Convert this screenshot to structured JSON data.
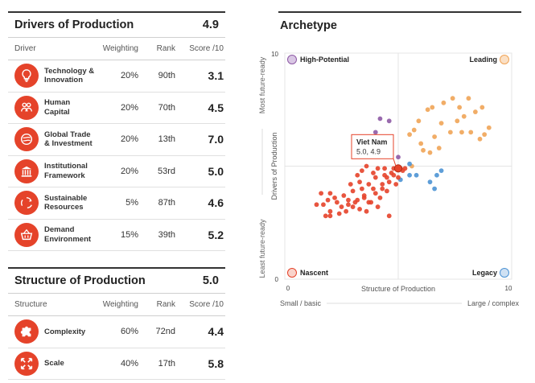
{
  "drivers": {
    "title": "Drivers of Production",
    "score": "4.9",
    "headers": {
      "name": "Driver",
      "weighting": "Weighting",
      "rank": "Rank",
      "score": "Score /10"
    },
    "rows": [
      {
        "icon": "lightbulb-icon",
        "name": [
          "Technology &",
          "Innovation"
        ],
        "weighting": "20%",
        "rank": "90th",
        "score": "3.1"
      },
      {
        "icon": "people-icon",
        "name": [
          "Human",
          "Capital"
        ],
        "weighting": "20%",
        "rank": "70th",
        "score": "4.5"
      },
      {
        "icon": "globe-icon",
        "name": [
          "Global Trade",
          "& Investment"
        ],
        "weighting": "20%",
        "rank": "13th",
        "score": "7.0"
      },
      {
        "icon": "institution-icon",
        "name": [
          "Institutional",
          "Framework"
        ],
        "weighting": "20%",
        "rank": "53rd",
        "score": "5.0"
      },
      {
        "icon": "recycle-icon",
        "name": [
          "Sustainable",
          "Resources"
        ],
        "weighting": "5%",
        "rank": "87th",
        "score": "4.6"
      },
      {
        "icon": "basket-icon",
        "name": [
          "Demand",
          "Environment"
        ],
        "weighting": "15%",
        "rank": "39th",
        "score": "5.2"
      }
    ]
  },
  "structure": {
    "title": "Structure of Production",
    "score": "5.0",
    "headers": {
      "name": "Structure",
      "weighting": "Weighting",
      "rank": "Rank",
      "score": "Score /10"
    },
    "rows": [
      {
        "icon": "puzzle-icon",
        "name": [
          "Complexity"
        ],
        "weighting": "60%",
        "rank": "72nd",
        "score": "4.4"
      },
      {
        "icon": "expand-icon",
        "name": [
          "Scale"
        ],
        "weighting": "40%",
        "rank": "17th",
        "score": "5.8"
      }
    ]
  },
  "archetype": {
    "title": "Archetype"
  },
  "colors": {
    "accent": "#e5432a",
    "leading": "#f0a457",
    "high_potential": "#8e5aa5",
    "legacy": "#4c93d4",
    "nascent": "#e5432a"
  },
  "chart_data": {
    "type": "scatter",
    "xlabel": "Structure of Production",
    "ylabel": "Drivers of Production",
    "x_axis_left": "Small / basic",
    "x_axis_right": "Large / complex",
    "y_axis_top": "Most future-ready",
    "y_axis_bottom": "Least future-ready",
    "xlim": [
      0,
      10
    ],
    "ylim": [
      0,
      10
    ],
    "xticks": [
      "0",
      "10"
    ],
    "yticks": [
      "0",
      "10"
    ],
    "threshold_x": 5.0,
    "threshold_y": 5.0,
    "quadrants": {
      "top_left": "High-Potential",
      "top_right": "Leading",
      "bottom_left": "Nascent",
      "bottom_right": "Legacy"
    },
    "highlight": {
      "name": "Viet Nam",
      "label": "5.0, 4.9",
      "x": 5.0,
      "y": 4.9
    },
    "series": [
      {
        "quadrant": "leading",
        "points": [
          [
            6.3,
            7.5
          ],
          [
            5.5,
            6.4
          ],
          [
            5.9,
            7.0
          ],
          [
            6.6,
            6.3
          ],
          [
            7.0,
            7.8
          ],
          [
            7.4,
            8.0
          ],
          [
            7.9,
            7.2
          ],
          [
            8.1,
            8.0
          ],
          [
            8.4,
            7.4
          ],
          [
            8.7,
            7.6
          ],
          [
            9.0,
            6.7
          ],
          [
            8.6,
            6.2
          ],
          [
            7.6,
            7.0
          ],
          [
            6.9,
            6.9
          ],
          [
            7.3,
            6.5
          ],
          [
            7.8,
            6.5
          ],
          [
            6.1,
            5.7
          ],
          [
            5.6,
            5.0
          ],
          [
            6.4,
            5.6
          ],
          [
            6.8,
            5.8
          ],
          [
            7.7,
            7.6
          ],
          [
            8.2,
            6.5
          ],
          [
            6.5,
            7.6
          ],
          [
            8.8,
            6.4
          ],
          [
            6.0,
            6.0
          ],
          [
            5.7,
            6.6
          ]
        ]
      },
      {
        "quadrant": "high_potential",
        "points": [
          [
            4.2,
            7.1
          ],
          [
            4.6,
            7.0
          ],
          [
            4.0,
            6.5
          ],
          [
            4.6,
            6.2
          ],
          [
            4.2,
            5.5
          ],
          [
            5.0,
            5.4
          ],
          [
            4.5,
            5.8
          ]
        ]
      },
      {
        "quadrant": "legacy",
        "points": [
          [
            5.1,
            4.4
          ],
          [
            5.5,
            4.6
          ],
          [
            5.8,
            4.6
          ],
          [
            6.4,
            4.3
          ],
          [
            6.7,
            4.6
          ],
          [
            6.9,
            4.8
          ],
          [
            5.5,
            5.1
          ],
          [
            6.6,
            4.0
          ]
        ]
      },
      {
        "quadrant": "nascent",
        "points": [
          [
            1.6,
            3.8
          ],
          [
            1.9,
            3.5
          ],
          [
            1.4,
            3.3
          ],
          [
            2.0,
            3.0
          ],
          [
            2.3,
            3.4
          ],
          [
            2.6,
            3.7
          ],
          [
            2.8,
            3.3
          ],
          [
            3.0,
            3.9
          ],
          [
            3.1,
            3.4
          ],
          [
            3.3,
            4.3
          ],
          [
            3.5,
            3.7
          ],
          [
            3.7,
            4.2
          ],
          [
            3.9,
            4.7
          ],
          [
            4.0,
            4.5
          ],
          [
            4.1,
            4.9
          ],
          [
            4.3,
            4.2
          ],
          [
            4.4,
            4.6
          ],
          [
            4.6,
            4.3
          ],
          [
            4.7,
            4.7
          ],
          [
            4.8,
            4.9
          ],
          [
            5.0,
            4.5
          ],
          [
            5.2,
            4.8
          ],
          [
            3.4,
            4.8
          ],
          [
            3.6,
            5.0
          ],
          [
            3.2,
            4.6
          ],
          [
            2.9,
            4.2
          ],
          [
            2.2,
            3.6
          ],
          [
            1.8,
            2.8
          ],
          [
            2.0,
            2.8
          ],
          [
            2.4,
            2.9
          ],
          [
            2.7,
            3.0
          ],
          [
            3.0,
            3.2
          ],
          [
            3.3,
            3.1
          ],
          [
            3.6,
            3.0
          ],
          [
            3.8,
            3.4
          ],
          [
            4.0,
            3.8
          ],
          [
            4.2,
            3.6
          ],
          [
            4.5,
            3.9
          ],
          [
            4.9,
            4.2
          ],
          [
            4.1,
            3.2
          ],
          [
            3.5,
            3.6
          ],
          [
            2.5,
            3.2
          ],
          [
            2.8,
            3.5
          ],
          [
            3.7,
            3.4
          ],
          [
            4.3,
            4.0
          ],
          [
            4.5,
            4.5
          ],
          [
            5.1,
            4.9
          ],
          [
            5.3,
            4.9
          ],
          [
            3.9,
            4.0
          ],
          [
            4.4,
            4.9
          ],
          [
            2.0,
            3.8
          ],
          [
            1.7,
            3.3
          ],
          [
            3.2,
            3.5
          ],
          [
            4.6,
            2.8
          ],
          [
            3.4,
            4.0
          ],
          [
            4.8,
            4.6
          ]
        ]
      }
    ]
  }
}
